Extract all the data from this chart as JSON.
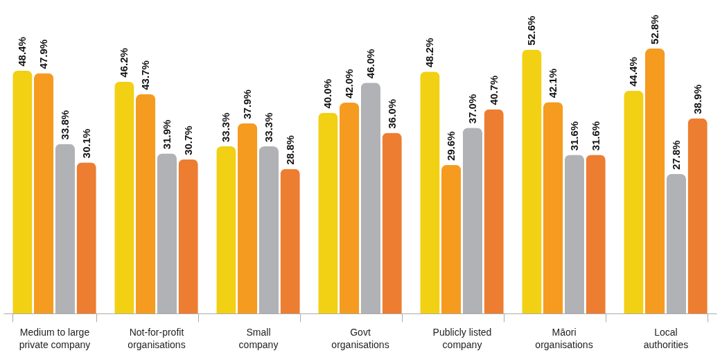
{
  "chart_data": {
    "type": "bar",
    "categories": [
      "Medium to large\nprivate company",
      "Not-for-profit\norganisations",
      "Small\ncompany",
      "Govt\norganisations",
      "Publicly listed\ncompany",
      "Māori\norganisations",
      "Local\nauthorities"
    ],
    "series": [
      {
        "color": "#f2d013",
        "values": [
          48.4,
          46.2,
          33.3,
          40.0,
          48.2,
          52.6,
          44.4
        ],
        "value_labels": [
          "48.4%",
          "46.2%",
          "33.3%",
          "40.0%",
          "48.2%",
          "52.6%",
          "44.4%"
        ]
      },
      {
        "color": "#f59b20",
        "values": [
          47.9,
          43.7,
          37.9,
          42.0,
          29.6,
          42.1,
          52.8
        ],
        "value_labels": [
          "47.9%",
          "43.7%",
          "37.9%",
          "42.0%",
          "29.6%",
          "42.1%",
          "52.8%"
        ]
      },
      {
        "color": "#b1b2b5",
        "values": [
          33.8,
          31.9,
          33.3,
          46.0,
          37.0,
          31.6,
          27.8
        ],
        "value_labels": [
          "33.8%",
          "31.9%",
          "33.3%",
          "46.0%",
          "37.0%",
          "31.6%",
          "27.8%"
        ]
      },
      {
        "color": "#ed7d31",
        "values": [
          30.1,
          30.7,
          28.8,
          36.0,
          40.7,
          31.6,
          38.9
        ],
        "value_labels": [
          "30.1%",
          "30.7%",
          "28.8%",
          "36.0%",
          "40.7%",
          "31.6%",
          "38.9%"
        ]
      }
    ]
  }
}
